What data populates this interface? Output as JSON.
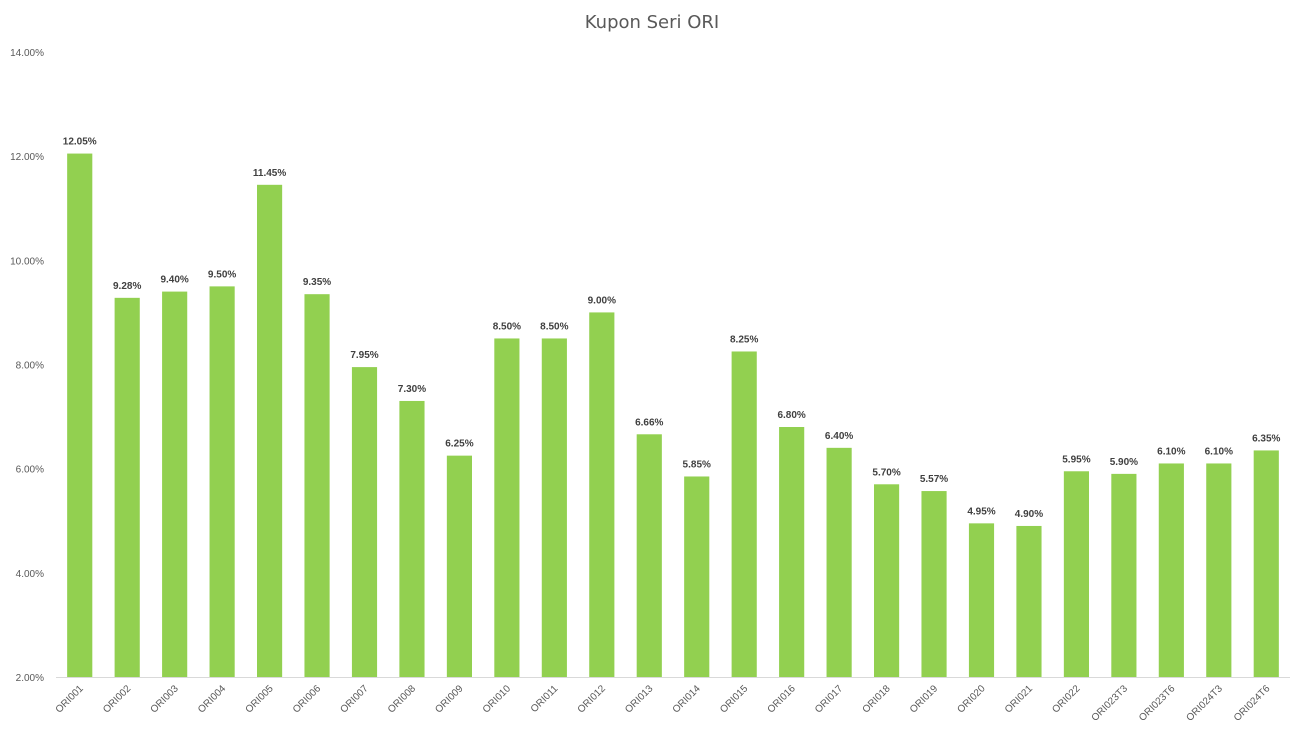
{
  "chart_data": {
    "type": "bar",
    "title": "Kupon Seri ORI",
    "xlabel": "",
    "ylabel": "",
    "ylim": [
      2.0,
      14.0
    ],
    "yticks": [
      "2.00%",
      "4.00%",
      "6.00%",
      "8.00%",
      "10.00%",
      "12.00%",
      "14.00%"
    ],
    "grid": false,
    "legend": "none",
    "bar_color": "#92d050",
    "categories": [
      "ORI001",
      "ORI002",
      "ORI003",
      "ORI004",
      "ORI005",
      "ORI006",
      "ORI007",
      "ORI008",
      "ORI009",
      "ORI010",
      "ORI011",
      "ORI012",
      "ORI013",
      "ORI014",
      "ORI015",
      "ORI016",
      "ORI017",
      "ORI018",
      "ORI019",
      "ORI020",
      "ORI021",
      "ORI022",
      "ORI023T3",
      "ORI023T6",
      "ORI024T3",
      "ORI024T6"
    ],
    "values": [
      12.05,
      9.28,
      9.4,
      9.5,
      11.45,
      9.35,
      7.95,
      7.3,
      6.25,
      8.5,
      8.5,
      9.0,
      6.66,
      5.85,
      8.25,
      6.8,
      6.4,
      5.7,
      5.57,
      4.95,
      4.9,
      5.95,
      5.9,
      6.1,
      6.1,
      6.35
    ],
    "data_labels": [
      "12.05%",
      "9.28%",
      "9.40%",
      "9.50%",
      "11.45%",
      "9.35%",
      "7.95%",
      "7.30%",
      "6.25%",
      "8.50%",
      "8.50%",
      "9.00%",
      "6.66%",
      "5.85%",
      "8.25%",
      "6.80%",
      "6.40%",
      "5.70%",
      "5.57%",
      "4.95%",
      "4.90%",
      "5.95%",
      "5.90%",
      "6.10%",
      "6.10%",
      "6.35%"
    ]
  }
}
